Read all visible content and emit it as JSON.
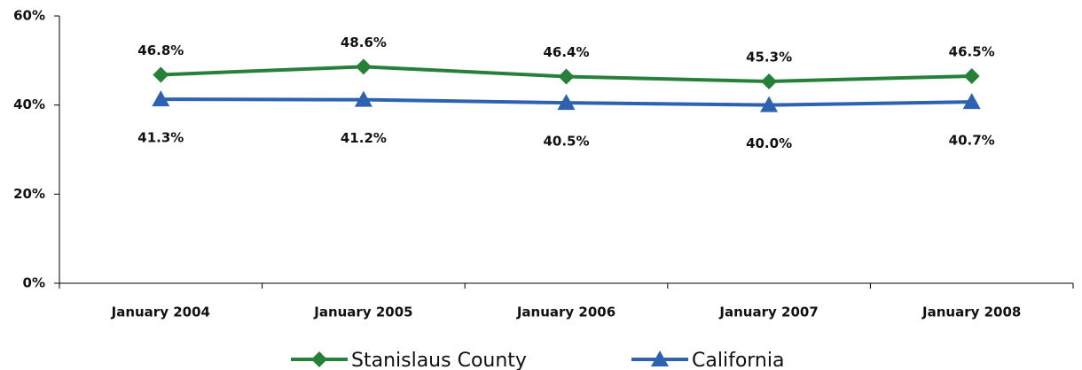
{
  "chart_data": {
    "type": "line",
    "categories": [
      "January 2004",
      "January 2005",
      "January 2006",
      "January 2007",
      "January 2008"
    ],
    "series": [
      {
        "name": "Stanislaus County",
        "color": "#27803a",
        "marker": "diamond",
        "values": [
          46.8,
          48.6,
          46.4,
          45.3,
          46.5
        ],
        "value_labels": [
          "46.8%",
          "48.6%",
          "46.4%",
          "45.3%",
          "46.5%"
        ]
      },
      {
        "name": "California",
        "color": "#2d62b0",
        "marker": "triangle",
        "values": [
          41.3,
          41.2,
          40.5,
          40.0,
          40.7
        ],
        "value_labels": [
          "41.3%",
          "41.2%",
          "40.5%",
          "40.0%",
          "40.7%"
        ]
      }
    ],
    "ylim": [
      0,
      60
    ],
    "yticks": [
      {
        "value": 0,
        "label": "0%"
      },
      {
        "value": 20,
        "label": "20%"
      },
      {
        "value": 40,
        "label": "40%"
      },
      {
        "value": 60,
        "label": "60%"
      }
    ],
    "grid": false,
    "legend": "bottom"
  }
}
